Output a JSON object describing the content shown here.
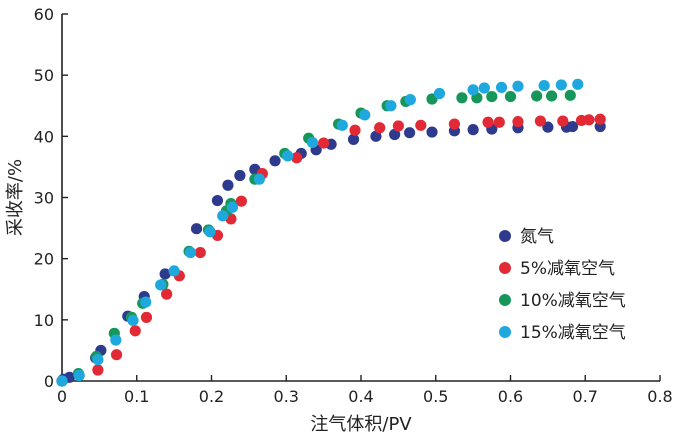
{
  "chart_data": {
    "type": "scatter",
    "xlabel": "注气体积/PV",
    "ylabel": "采收率/%",
    "xlim": [
      0,
      0.8
    ],
    "ylim": [
      0,
      60
    ],
    "x_ticks": [
      "0",
      "0.1",
      "0.2",
      "0.3",
      "0.4",
      "0.5",
      "0.6",
      "0.7",
      "0.8"
    ],
    "y_ticks": [
      "0",
      "10",
      "20",
      "30",
      "40",
      "50",
      "60"
    ],
    "grid": false,
    "legend_position": "right-middle",
    "series": [
      {
        "name": "氮气",
        "color": "#2e3a8c",
        "points": [
          [
            0.002,
            0.3
          ],
          [
            0.01,
            0.6
          ],
          [
            0.045,
            3.8
          ],
          [
            0.052,
            5.0
          ],
          [
            0.088,
            10.6
          ],
          [
            0.11,
            13.8
          ],
          [
            0.138,
            17.5
          ],
          [
            0.18,
            24.9
          ],
          [
            0.208,
            29.5
          ],
          [
            0.222,
            32.0
          ],
          [
            0.238,
            33.6
          ],
          [
            0.258,
            34.6
          ],
          [
            0.285,
            36.0
          ],
          [
            0.32,
            37.2
          ],
          [
            0.34,
            37.8
          ],
          [
            0.36,
            38.7
          ],
          [
            0.39,
            39.5
          ],
          [
            0.42,
            40.0
          ],
          [
            0.445,
            40.3
          ],
          [
            0.465,
            40.6
          ],
          [
            0.495,
            40.7
          ],
          [
            0.525,
            40.9
          ],
          [
            0.55,
            41.1
          ],
          [
            0.575,
            41.2
          ],
          [
            0.61,
            41.4
          ],
          [
            0.65,
            41.5
          ],
          [
            0.675,
            41.5
          ],
          [
            0.683,
            41.6
          ],
          [
            0.72,
            41.6
          ]
        ]
      },
      {
        "name": "5%减氧空气",
        "color": "#e12a35",
        "points": [
          [
            0.0,
            0.0
          ],
          [
            0.048,
            1.8
          ],
          [
            0.073,
            4.3
          ],
          [
            0.098,
            8.2
          ],
          [
            0.113,
            10.4
          ],
          [
            0.14,
            14.2
          ],
          [
            0.157,
            17.2
          ],
          [
            0.185,
            21.0
          ],
          [
            0.208,
            23.8
          ],
          [
            0.226,
            26.5
          ],
          [
            0.24,
            29.4
          ],
          [
            0.268,
            33.9
          ],
          [
            0.314,
            36.5
          ],
          [
            0.35,
            38.9
          ],
          [
            0.392,
            41.0
          ],
          [
            0.425,
            41.4
          ],
          [
            0.45,
            41.7
          ],
          [
            0.48,
            41.8
          ],
          [
            0.525,
            42.0
          ],
          [
            0.57,
            42.3
          ],
          [
            0.585,
            42.3
          ],
          [
            0.61,
            42.4
          ],
          [
            0.64,
            42.5
          ],
          [
            0.67,
            42.5
          ],
          [
            0.695,
            42.6
          ],
          [
            0.705,
            42.7
          ],
          [
            0.72,
            42.8
          ]
        ]
      },
      {
        "name": "10%减氧空气",
        "color": "#17965a",
        "points": [
          [
            0.0,
            0.0
          ],
          [
            0.022,
            1.2
          ],
          [
            0.046,
            4.0
          ],
          [
            0.07,
            7.8
          ],
          [
            0.093,
            10.4
          ],
          [
            0.108,
            12.7
          ],
          [
            0.135,
            15.8
          ],
          [
            0.17,
            21.2
          ],
          [
            0.196,
            24.7
          ],
          [
            0.22,
            27.8
          ],
          [
            0.226,
            29.0
          ],
          [
            0.258,
            33.0
          ],
          [
            0.298,
            37.2
          ],
          [
            0.33,
            39.7
          ],
          [
            0.37,
            42.0
          ],
          [
            0.4,
            43.8
          ],
          [
            0.435,
            45.0
          ],
          [
            0.46,
            45.7
          ],
          [
            0.495,
            46.1
          ],
          [
            0.535,
            46.3
          ],
          [
            0.555,
            46.3
          ],
          [
            0.575,
            46.5
          ],
          [
            0.6,
            46.5
          ],
          [
            0.635,
            46.6
          ],
          [
            0.655,
            46.6
          ],
          [
            0.68,
            46.7
          ]
        ]
      },
      {
        "name": "15%减氧空气",
        "color": "#1fa8de",
        "points": [
          [
            0.0,
            0.0
          ],
          [
            0.023,
            0.9
          ],
          [
            0.048,
            3.5
          ],
          [
            0.072,
            6.7
          ],
          [
            0.095,
            9.9
          ],
          [
            0.112,
            12.9
          ],
          [
            0.132,
            15.7
          ],
          [
            0.15,
            18.0
          ],
          [
            0.172,
            21.0
          ],
          [
            0.198,
            24.4
          ],
          [
            0.215,
            27.0
          ],
          [
            0.228,
            28.4
          ],
          [
            0.264,
            33.0
          ],
          [
            0.302,
            36.8
          ],
          [
            0.335,
            39.0
          ],
          [
            0.375,
            41.8
          ],
          [
            0.405,
            43.5
          ],
          [
            0.44,
            45.0
          ],
          [
            0.466,
            46.0
          ],
          [
            0.505,
            47.0
          ],
          [
            0.55,
            47.6
          ],
          [
            0.565,
            47.9
          ],
          [
            0.588,
            48.0
          ],
          [
            0.61,
            48.2
          ],
          [
            0.645,
            48.3
          ],
          [
            0.668,
            48.4
          ],
          [
            0.69,
            48.5
          ]
        ]
      }
    ]
  }
}
